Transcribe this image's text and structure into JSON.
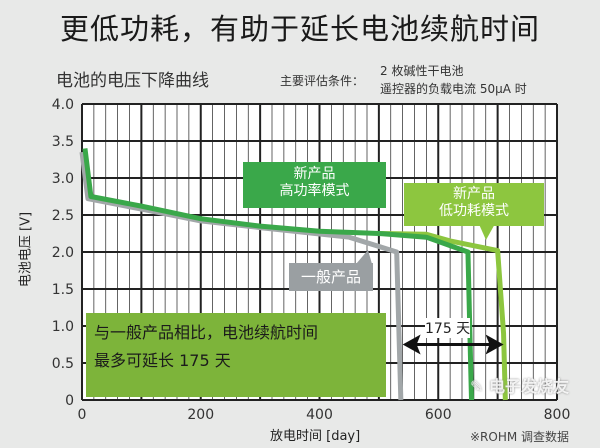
{
  "title": "更低功耗，有助于延长电池续航时间",
  "subtitle": "电池的电压下降曲线",
  "conditions": {
    "label": "主要评估条件：",
    "line1": "2 枚碱性干电池",
    "line2": "遥控器的负载电流 50μA 时"
  },
  "note": {
    "line1": "与一般产品相比，电池续航时间",
    "line2": "最多可延长 175 天"
  },
  "arrow_label": "175 天",
  "source": "※ROHM 调查数据",
  "watermark": "电子发烧友",
  "chart_data": {
    "type": "line",
    "xlabel": "放电时间 [day]",
    "ylabel": "电池电压 [V]",
    "xlim": [
      0,
      800
    ],
    "ylim": [
      0,
      4.0
    ],
    "xticks": [
      "0",
      "200",
      "400",
      "600",
      "800"
    ],
    "yticks": [
      "0",
      "0.5",
      "1.0",
      "1.5",
      "2.0",
      "2.5",
      "3.0",
      "3.5",
      "4.0"
    ],
    "grid": true,
    "series": [
      {
        "name": "一般产品",
        "color": "#a2a7a9",
        "x": [
          0,
          10,
          100,
          200,
          300,
          450,
          530,
          537
        ],
        "y": [
          3.35,
          2.72,
          2.58,
          2.42,
          2.33,
          2.2,
          2.0,
          0
        ]
      },
      {
        "name": "新产品 高功率模式",
        "color": "#3aa84a",
        "x": [
          5,
          15,
          100,
          200,
          300,
          400,
          500,
          580,
          650,
          656
        ],
        "y": [
          3.4,
          2.75,
          2.62,
          2.45,
          2.35,
          2.28,
          2.25,
          2.2,
          2.0,
          0
        ]
      },
      {
        "name": "新产品 低功耗模式",
        "color": "#8dc63f",
        "x": [
          500,
          580,
          620,
          700,
          710,
          713
        ],
        "y": [
          2.25,
          2.24,
          2.15,
          2.02,
          0.9,
          0
        ]
      }
    ],
    "labels": {
      "general": "一般产品",
      "high_l1": "新产品",
      "high_l2": "高功率模式",
      "low_l1": "新产品",
      "low_l2": "低功耗模式"
    }
  }
}
